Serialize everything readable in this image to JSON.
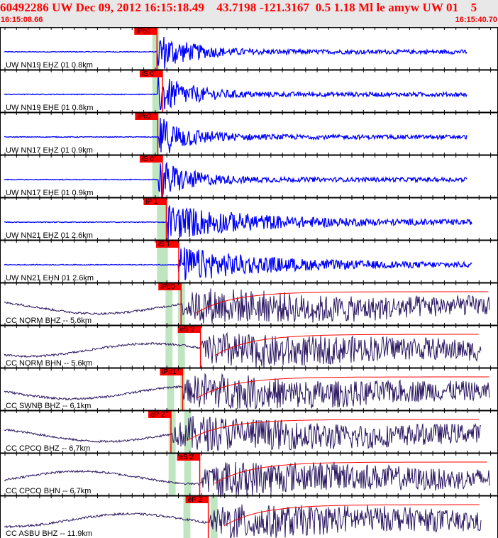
{
  "header": {
    "title": "60492286 UW Dec 09, 2012 16:15:18.49    43.7198 -121.3167  0.5 1.18 Ml le amyw UW 01    5",
    "time_start": "16:15:08.66",
    "time_end": "16:15:40.70"
  },
  "time_window_seconds": 32.04,
  "colors": {
    "uw_trace": "#0000ff",
    "cc_trace": "#2a1660",
    "pick": "#ff0000",
    "band": "#bfe6c0",
    "header_bg": "#e8e8e8"
  },
  "panels": [
    {
      "label": "UW NN19 EHZ 01 0.8km",
      "net": "UW",
      "onset": 10.1,
      "pick": {
        "label": "iPc0",
        "t": 10.1
      },
      "bands": [
        [
          9.8,
          10.25
        ]
      ]
    },
    {
      "label": "UW NN19 EHE 01 0.8km",
      "net": "UW",
      "onset": 10.15,
      "pick": {
        "label": "iS 0",
        "t": 10.45
      },
      "bands": [
        [
          9.8,
          10.25
        ]
      ]
    },
    {
      "label": "UW NN17 EHZ 01 0.9km",
      "net": "UW",
      "onset": 10.2,
      "pick": {
        "label": "iPc0",
        "t": 10.15
      },
      "bands": [
        [
          9.8,
          10.25
        ]
      ]
    },
    {
      "label": "UW NN17 EHE 01 0.9km",
      "net": "UW",
      "onset": 10.2,
      "pick": {
        "label": "iS 0",
        "t": 10.45
      },
      "bands": [
        [
          9.8,
          10.25
        ]
      ]
    },
    {
      "label": "UW NN21 EHZ 01 2.6km",
      "net": "UW",
      "onset": 10.8,
      "pick": {
        "label": "iP 1",
        "t": 10.7
      },
      "bands": [
        [
          10.1,
          10.8
        ]
      ]
    },
    {
      "label": "UW NN21 EHN 01 2.6km",
      "net": "UW",
      "onset": 11.5,
      "pick": {
        "label": "iS 1",
        "t": 11.5
      },
      "bands": [
        [
          10.1,
          10.8
        ]
      ]
    },
    {
      "label": "CC NORM BHZ -- 5.6km",
      "net": "CC",
      "onset": 11.7,
      "pick": {
        "label": "iPd0",
        "t": 11.65
      },
      "bands": [
        [
          10.65,
          11.1
        ],
        [
          11.45,
          11.9
        ]
      ]
    },
    {
      "label": "CC NORM BHN -- 5.6km",
      "net": "CC",
      "onset": 12.9,
      "pick": {
        "label": "eS 2",
        "t": 12.9
      },
      "bands": [
        [
          10.65,
          11.1
        ],
        [
          11.45,
          11.9
        ]
      ]
    },
    {
      "label": "CC SWNB BHZ -- 6.1km",
      "net": "CC",
      "onset": 11.75,
      "pick": {
        "label": "iPd1",
        "t": 11.75
      },
      "bands": [
        [
          10.75,
          11.2
        ],
        [
          11.6,
          11.9
        ]
      ]
    },
    {
      "label": "CC CPCO BHZ -- 6.7km",
      "net": "CC",
      "onset": 11.1,
      "pick": {
        "label": "eP 2",
        "t": 11.0
      },
      "bands": [
        [
          10.85,
          11.3
        ],
        [
          11.85,
          12.3
        ]
      ]
    },
    {
      "label": "CC CPCO BHN -- 6.7km",
      "net": "CC",
      "onset": 12.9,
      "pick": {
        "label": "eS 2",
        "t": 12.85
      },
      "bands": [
        [
          10.85,
          11.3
        ],
        [
          11.85,
          12.3
        ]
      ]
    },
    {
      "label": "CC ASBU BHZ -- 11.9km",
      "net": "CC",
      "onset": 13.5,
      "pick": {
        "label": "eP 2",
        "t": 13.4
      },
      "bands": [
        [
          11.8,
          12.25
        ],
        [
          13.55,
          14.0
        ]
      ]
    }
  ]
}
